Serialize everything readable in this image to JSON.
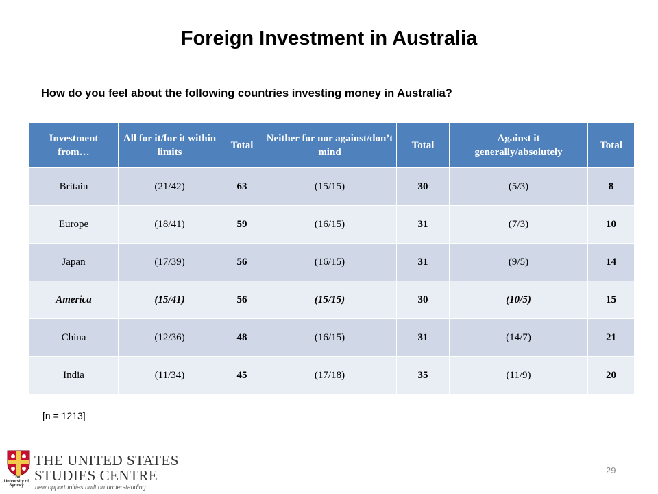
{
  "header": {
    "title": "Foreign Investment in Australia",
    "question": "How do you feel about the following countries investing money in Australia?"
  },
  "table": {
    "columns": [
      "Investment from…",
      "All for it/for it within limits",
      "Total",
      "Neither for nor against/don’t mind",
      "Total",
      "Against it generally/absolutely",
      "Total"
    ],
    "rows": [
      [
        "Britain",
        "(21/42)",
        63,
        "(15/15)",
        30,
        "(5/3)",
        8
      ],
      [
        "Europe",
        "(18/41)",
        59,
        "(16/15)",
        31,
        "(7/3)",
        10
      ],
      [
        "Japan",
        "(17/39)",
        56,
        "(16/15)",
        31,
        "(9/5)",
        14
      ],
      [
        "America",
        "(15/41)",
        56,
        "(15/15)",
        30,
        "(10/5)",
        15
      ],
      [
        "China",
        "(12/36)",
        48,
        "(16/15)",
        31,
        "(14/7)",
        21
      ],
      [
        "India",
        "(11/34)",
        45,
        "(17/18)",
        35,
        "(11/9)",
        20
      ]
    ]
  },
  "note": "[n = 1213]",
  "footer": {
    "org_line1": "The United States",
    "org_line2": "Studies Centre",
    "tagline": "new opportunities built on understanding",
    "university": "The University of Sydney",
    "page": "29"
  }
}
